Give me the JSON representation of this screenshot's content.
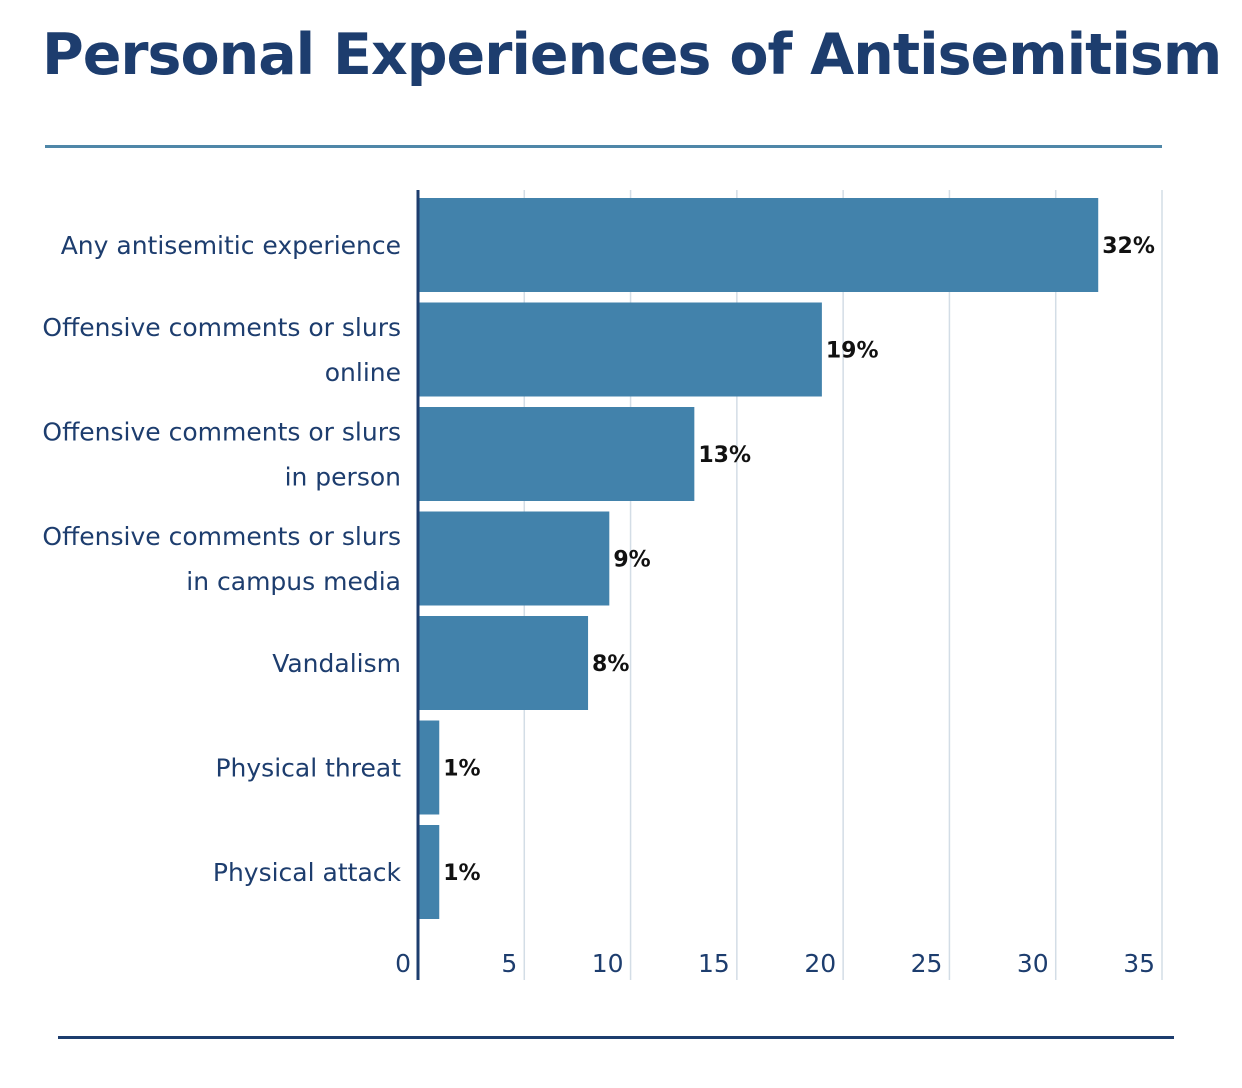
{
  "title": "Personal Experiences of Antisemitism",
  "colors": {
    "bar": "#4282ab",
    "title": "#1d3d6e",
    "gridline": "#d3dde6",
    "axis": "#1d3d6e",
    "rule_top": "#4f87a8",
    "rule_bottom": "#1d3d6e"
  },
  "chart_data": {
    "type": "bar",
    "orientation": "horizontal",
    "title": "Personal Experiences of Antisemitism",
    "xlabel": "",
    "ylabel": "",
    "categories": [
      [
        "Any antisemitic experience"
      ],
      [
        "Offensive comments or slurs",
        "online"
      ],
      [
        "Offensive comments or slurs",
        "in person"
      ],
      [
        "Offensive comments or slurs",
        "in campus media"
      ],
      [
        "Vandalism"
      ],
      [
        "Physical threat"
      ],
      [
        "Physical attack"
      ]
    ],
    "values": [
      32,
      19,
      13,
      9,
      8,
      1,
      1
    ],
    "data_labels": [
      "32%",
      "19%",
      "13%",
      "9%",
      "8%",
      "1%",
      "1%"
    ],
    "xlim": [
      0,
      35
    ],
    "xticks": [
      0,
      5,
      10,
      15,
      20,
      25,
      30,
      35
    ],
    "grid": true,
    "legend": "none"
  }
}
